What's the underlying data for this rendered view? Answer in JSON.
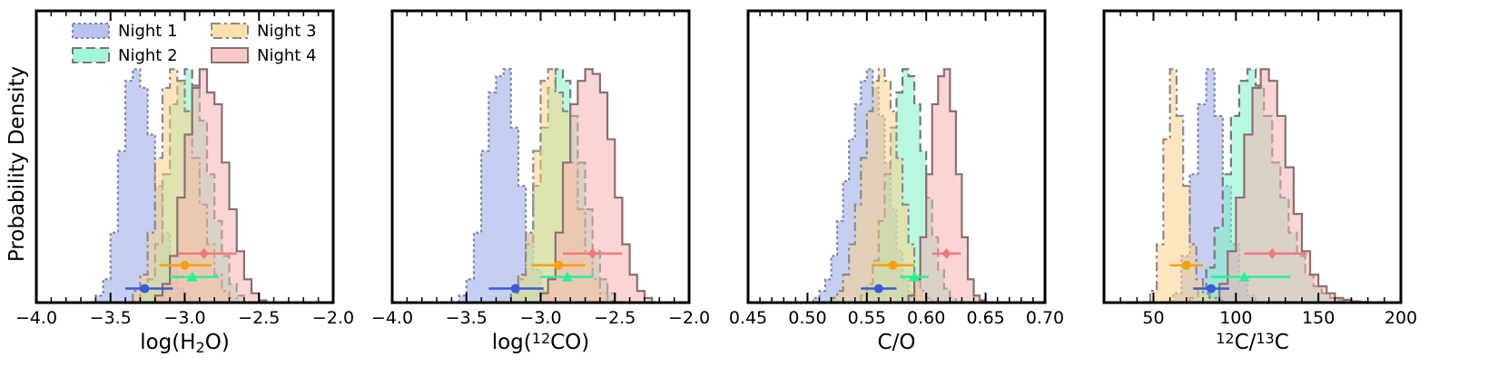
{
  "figure": {
    "ylabel": "Probability Density"
  },
  "legend": [
    {
      "name": "Night 1",
      "fill": "#98a8e8",
      "stroke": "#8088a8",
      "dash": "3,3"
    },
    {
      "name": "Night 2",
      "fill": "#7df2c8",
      "stroke": "#777777",
      "dash": "10,5"
    },
    {
      "name": "Night 3",
      "fill": "#fcd28a",
      "stroke": "#8a8a8a",
      "dash": "10,4,3,4"
    },
    {
      "name": "Night 4",
      "fill": "#f6b2b2",
      "stroke": "#8a7070",
      "dash": ""
    }
  ],
  "chart_data": [
    {
      "type": "histogram",
      "xlabel_parts": [
        {
          "t": "log(H"
        },
        {
          "t": "2",
          "sub": true
        },
        {
          "t": "O)"
        }
      ],
      "xlim": [
        -4.0,
        -2.0
      ],
      "xticks": [
        -4.0,
        -3.5,
        -3.0,
        -2.5,
        -2.0
      ],
      "xtick_labels": [
        "−4.0",
        "−3.5",
        "−3.0",
        "−2.5",
        "−2.0"
      ],
      "ylim": [
        0,
        1.25
      ],
      "series": [
        {
          "name": "Night 1",
          "edges": [
            -3.6,
            -3.55,
            -3.5,
            -3.45,
            -3.4,
            -3.35,
            -3.3,
            -3.25,
            -3.2,
            -3.15,
            -3.1,
            -3.05,
            -3.0,
            -2.95
          ],
          "values": [
            0.03,
            0.1,
            0.3,
            0.65,
            0.95,
            1.0,
            0.92,
            0.72,
            0.5,
            0.3,
            0.15,
            0.06,
            0.02
          ]
        },
        {
          "name": "Night 2",
          "edges": [
            -3.3,
            -3.25,
            -3.2,
            -3.15,
            -3.1,
            -3.05,
            -3.0,
            -2.95,
            -2.9,
            -2.85,
            -2.8,
            -2.75,
            -2.7,
            -2.65,
            -2.6
          ],
          "values": [
            0.05,
            0.1,
            0.25,
            0.55,
            0.85,
            0.95,
            1.0,
            0.93,
            0.78,
            0.55,
            0.35,
            0.2,
            0.08,
            0.03
          ]
        },
        {
          "name": "Night 3",
          "edges": [
            -3.35,
            -3.3,
            -3.25,
            -3.2,
            -3.15,
            -3.1,
            -3.05,
            -3.0,
            -2.95,
            -2.9,
            -2.85,
            -2.8,
            -2.75,
            -2.7,
            -2.65
          ],
          "values": [
            0.05,
            0.12,
            0.3,
            0.62,
            0.92,
            1.0,
            0.95,
            0.82,
            0.62,
            0.42,
            0.25,
            0.12,
            0.05,
            0.02
          ]
        },
        {
          "name": "Night 4",
          "edges": [
            -3.2,
            -3.15,
            -3.1,
            -3.05,
            -3.0,
            -2.95,
            -2.9,
            -2.85,
            -2.8,
            -2.75,
            -2.7,
            -2.65,
            -2.6,
            -2.55,
            -2.5,
            -2.45
          ],
          "values": [
            0.03,
            0.08,
            0.2,
            0.45,
            0.72,
            0.92,
            1.0,
            0.9,
            0.85,
            0.6,
            0.4,
            0.22,
            0.1,
            0.04,
            0.01
          ]
        }
      ],
      "errorbars": [
        {
          "name": "Night 1",
          "x": -3.27,
          "lo": -3.4,
          "hi": -3.08,
          "y": 0.06,
          "marker": "circle"
        },
        {
          "name": "Night 2",
          "x": -2.95,
          "lo": -3.1,
          "hi": -2.77,
          "y": 0.11,
          "marker": "triangle"
        },
        {
          "name": "Night 3",
          "x": -3.0,
          "lo": -3.17,
          "hi": -2.82,
          "y": 0.16,
          "marker": "circle"
        },
        {
          "name": "Night 4",
          "x": -2.87,
          "lo": -3.04,
          "hi": -2.65,
          "y": 0.21,
          "marker": "diamond"
        }
      ]
    },
    {
      "type": "histogram",
      "xlabel_parts": [
        {
          "t": "log("
        },
        {
          "t": "12",
          "sup": true
        },
        {
          "t": "CO)"
        }
      ],
      "xlim": [
        -4.0,
        -2.0
      ],
      "xticks": [
        -4.0,
        -3.5,
        -3.0,
        -2.5,
        -2.0
      ],
      "xtick_labels": [
        "−4.0",
        "−3.5",
        "−3.0",
        "−2.5",
        "−2.0"
      ],
      "ylim": [
        0,
        1.25
      ],
      "series": [
        {
          "name": "Night 1",
          "edges": [
            -3.55,
            -3.5,
            -3.45,
            -3.4,
            -3.35,
            -3.3,
            -3.25,
            -3.2,
            -3.15,
            -3.1,
            -3.05,
            -3.0,
            -2.95,
            -2.9
          ],
          "values": [
            0.03,
            0.1,
            0.3,
            0.65,
            0.9,
            0.97,
            1.0,
            0.75,
            0.5,
            0.3,
            0.14,
            0.05,
            0.02
          ]
        },
        {
          "name": "Night 2",
          "edges": [
            -3.2,
            -3.15,
            -3.1,
            -3.05,
            -3.0,
            -2.95,
            -2.9,
            -2.85,
            -2.8,
            -2.75,
            -2.7,
            -2.65,
            -2.6,
            -2.55,
            -2.5
          ],
          "values": [
            0.04,
            0.1,
            0.25,
            0.5,
            0.75,
            0.92,
            1.0,
            0.95,
            0.8,
            0.6,
            0.4,
            0.22,
            0.1,
            0.04
          ]
        },
        {
          "name": "Night 3",
          "edges": [
            -3.2,
            -3.15,
            -3.1,
            -3.05,
            -3.0,
            -2.95,
            -2.9,
            -2.85,
            -2.8,
            -2.75,
            -2.7,
            -2.65,
            -2.6,
            -2.55,
            -2.5
          ],
          "values": [
            0.05,
            0.12,
            0.3,
            0.65,
            0.95,
            1.0,
            0.9,
            0.82,
            0.6,
            0.4,
            0.22,
            0.1,
            0.04,
            0.01
          ]
        },
        {
          "name": "Night 4",
          "edges": [
            -3.0,
            -2.95,
            -2.9,
            -2.85,
            -2.8,
            -2.75,
            -2.7,
            -2.65,
            -2.6,
            -2.55,
            -2.5,
            -2.45,
            -2.4,
            -2.35,
            -2.3,
            -2.25
          ],
          "values": [
            0.04,
            0.1,
            0.3,
            0.6,
            0.85,
            0.95,
            1.0,
            0.98,
            0.9,
            0.7,
            0.45,
            0.25,
            0.12,
            0.05,
            0.02
          ]
        }
      ],
      "errorbars": [
        {
          "name": "Night 1",
          "x": -3.17,
          "lo": -3.35,
          "hi": -2.98,
          "y": 0.06,
          "marker": "circle"
        },
        {
          "name": "Night 2",
          "x": -2.82,
          "lo": -3.0,
          "hi": -2.65,
          "y": 0.11,
          "marker": "triangle"
        },
        {
          "name": "Night 3",
          "x": -2.88,
          "lo": -3.06,
          "hi": -2.7,
          "y": 0.16,
          "marker": "circle"
        },
        {
          "name": "Night 4",
          "x": -2.65,
          "lo": -2.85,
          "hi": -2.45,
          "y": 0.21,
          "marker": "diamond"
        }
      ]
    },
    {
      "type": "histogram",
      "xlabel_parts": [
        {
          "t": "C/O"
        }
      ],
      "xlim": [
        0.45,
        0.7
      ],
      "xticks": [
        0.45,
        0.5,
        0.55,
        0.6,
        0.65,
        0.7
      ],
      "xtick_labels": [
        "0.45",
        "0.50",
        "0.55",
        "0.60",
        "0.65",
        "0.70"
      ],
      "ylim": [
        0,
        1.25
      ],
      "series": [
        {
          "name": "Night 1",
          "edges": [
            0.505,
            0.51,
            0.515,
            0.52,
            0.525,
            0.53,
            0.535,
            0.54,
            0.545,
            0.55,
            0.555,
            0.56,
            0.565,
            0.57,
            0.575,
            0.58,
            0.585,
            0.59
          ],
          "values": [
            0.02,
            0.05,
            0.1,
            0.2,
            0.35,
            0.52,
            0.7,
            0.85,
            0.95,
            1.0,
            0.92,
            0.8,
            0.6,
            0.4,
            0.22,
            0.1,
            0.04
          ]
        },
        {
          "name": "Night 2",
          "edges": [
            0.545,
            0.55,
            0.555,
            0.56,
            0.565,
            0.57,
            0.575,
            0.58,
            0.585,
            0.59,
            0.595,
            0.6,
            0.605,
            0.61,
            0.615,
            0.62,
            0.625
          ],
          "values": [
            0.03,
            0.08,
            0.18,
            0.35,
            0.55,
            0.75,
            0.9,
            1.0,
            0.97,
            0.85,
            0.65,
            0.45,
            0.28,
            0.14,
            0.06,
            0.02
          ]
        },
        {
          "name": "Night 3",
          "edges": [
            0.52,
            0.525,
            0.53,
            0.535,
            0.54,
            0.545,
            0.55,
            0.555,
            0.56,
            0.565,
            0.57,
            0.575,
            0.58,
            0.585,
            0.59,
            0.595,
            0.6,
            0.605
          ],
          "values": [
            0.02,
            0.05,
            0.12,
            0.25,
            0.42,
            0.62,
            0.82,
            0.95,
            1.0,
            0.95,
            0.82,
            0.62,
            0.42,
            0.25,
            0.12,
            0.05,
            0.02
          ]
        },
        {
          "name": "Night 4",
          "edges": [
            0.585,
            0.59,
            0.595,
            0.6,
            0.605,
            0.61,
            0.615,
            0.62,
            0.625,
            0.63,
            0.635,
            0.64,
            0.645,
            0.65
          ],
          "values": [
            0.03,
            0.1,
            0.28,
            0.55,
            0.85,
            0.97,
            1.0,
            0.82,
            0.55,
            0.28,
            0.1,
            0.03,
            0.01
          ]
        }
      ],
      "errorbars": [
        {
          "name": "Night 1",
          "x": 0.56,
          "lo": 0.545,
          "hi": 0.575,
          "y": 0.06,
          "marker": "circle"
        },
        {
          "name": "Night 2",
          "x": 0.59,
          "lo": 0.578,
          "hi": 0.602,
          "y": 0.11,
          "marker": "triangle"
        },
        {
          "name": "Night 3",
          "x": 0.572,
          "lo": 0.554,
          "hi": 0.59,
          "y": 0.16,
          "marker": "circle"
        },
        {
          "name": "Night 4",
          "x": 0.617,
          "lo": 0.605,
          "hi": 0.629,
          "y": 0.21,
          "marker": "diamond"
        }
      ]
    },
    {
      "type": "histogram",
      "xlabel_parts": [
        {
          "t": "12",
          "sup": true
        },
        {
          "t": "C/"
        },
        {
          "t": "13",
          "sup": true
        },
        {
          "t": "C"
        }
      ],
      "xlim": [
        20,
        200
      ],
      "xticks": [
        50,
        100,
        150,
        200
      ],
      "xtick_labels": [
        "50",
        "100",
        "150",
        "200"
      ],
      "ylim": [
        0,
        1.25
      ],
      "series": [
        {
          "name": "Night 1",
          "edges": [
            62,
            67,
            72,
            77,
            82,
            87,
            92,
            97,
            102,
            107,
            112
          ],
          "values": [
            0.04,
            0.2,
            0.55,
            0.85,
            1.0,
            0.8,
            0.5,
            0.25,
            0.1,
            0.03
          ]
        },
        {
          "name": "Night 2",
          "edges": [
            72,
            77,
            82,
            87,
            92,
            97,
            102,
            107,
            112,
            117,
            122,
            127,
            132,
            137,
            142,
            147,
            152,
            157,
            162,
            167,
            172
          ],
          "values": [
            0.02,
            0.06,
            0.15,
            0.32,
            0.55,
            0.8,
            0.95,
            1.0,
            0.93,
            0.8,
            0.6,
            0.45,
            0.3,
            0.2,
            0.12,
            0.07,
            0.04,
            0.02,
            0.01,
            0.005
          ]
        },
        {
          "name": "Night 3",
          "edges": [
            48,
            52,
            56,
            60,
            64,
            68,
            72,
            76,
            80,
            84,
            88,
            92
          ],
          "values": [
            0.05,
            0.25,
            0.7,
            1.0,
            0.8,
            0.5,
            0.25,
            0.1,
            0.04,
            0.02,
            0.01
          ]
        },
        {
          "name": "Night 4",
          "edges": [
            90,
            95,
            100,
            105,
            110,
            115,
            120,
            125,
            130,
            135,
            140,
            145,
            150,
            155,
            160,
            165,
            170,
            175,
            180
          ],
          "values": [
            0.08,
            0.22,
            0.45,
            0.72,
            0.92,
            1.0,
            0.95,
            0.8,
            0.58,
            0.38,
            0.22,
            0.12,
            0.07,
            0.04,
            0.02,
            0.012,
            0.006,
            0.003
          ]
        }
      ],
      "errorbars": [
        {
          "name": "Night 1",
          "x": 85,
          "lo": 74,
          "hi": 96,
          "y": 0.06,
          "marker": "circle"
        },
        {
          "name": "Night 2",
          "x": 105,
          "lo": 85,
          "hi": 133,
          "y": 0.11,
          "marker": "triangle"
        },
        {
          "name": "Night 3",
          "x": 70,
          "lo": 60,
          "hi": 80,
          "y": 0.16,
          "marker": "circle"
        },
        {
          "name": "Night 4",
          "x": 122,
          "lo": 105,
          "hi": 143,
          "y": 0.21,
          "marker": "diamond"
        }
      ]
    }
  ],
  "errorbar_colors": {
    "Night 1": "#3a5ad8",
    "Night 2": "#28f09a",
    "Night 3": "#f4a20a",
    "Night 4": "#f07a7a"
  }
}
